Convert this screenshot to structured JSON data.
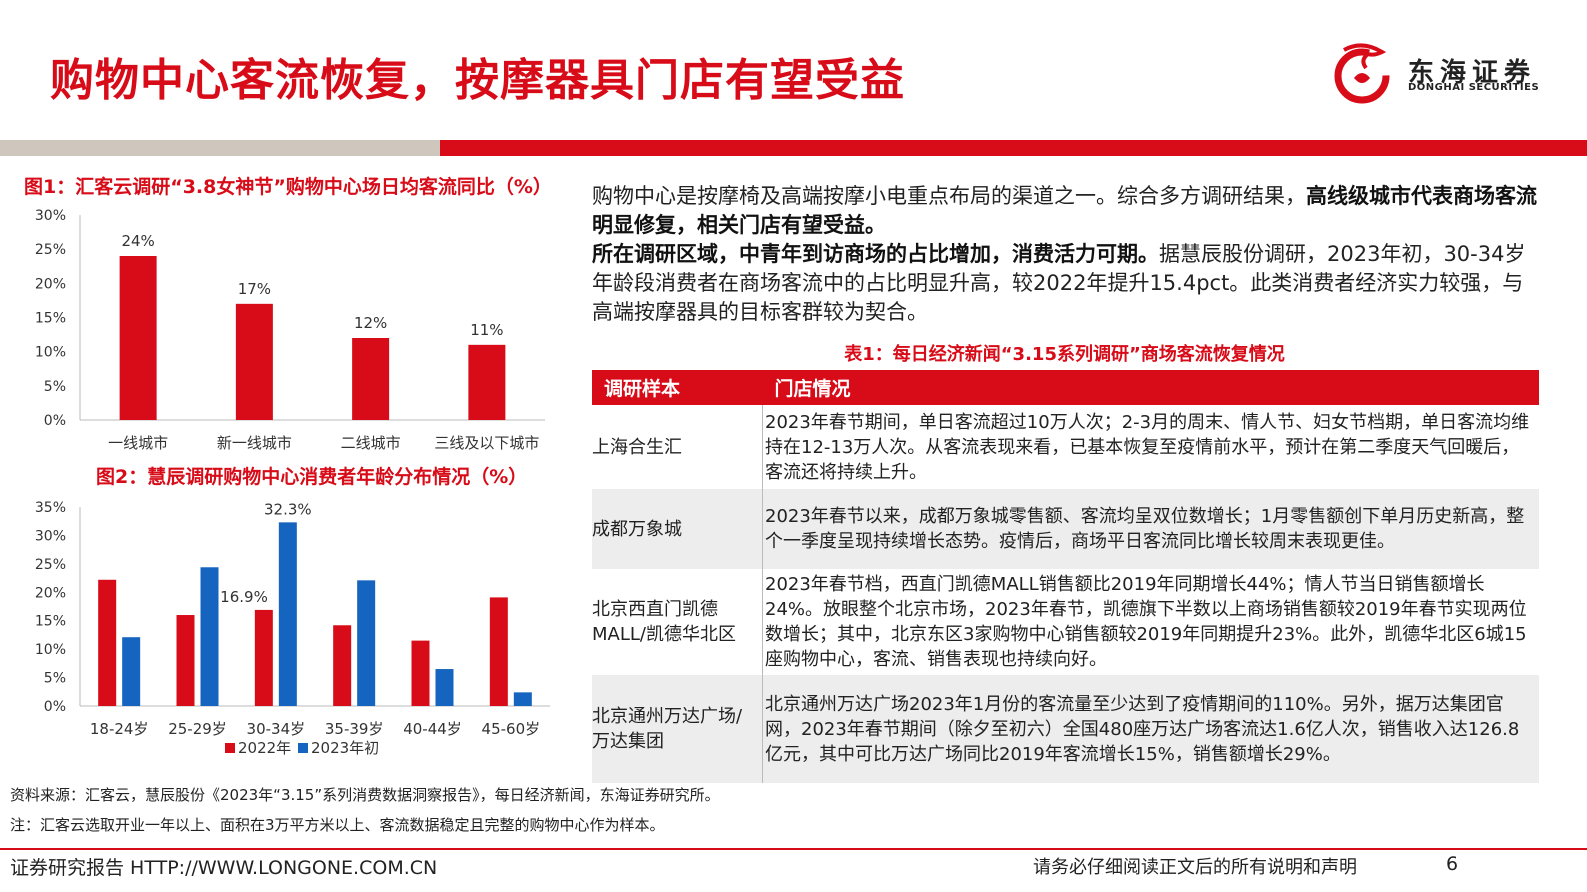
{
  "header": {
    "title": "购物中心客流恢复，按摩器具门店有望受益",
    "logo_cn": "东海证券",
    "logo_en": "DONGHAI SECURITIES"
  },
  "figure1": {
    "title": "图1：汇客云调研“3.8女神节”购物中心场日均客流同比（%）"
  },
  "figure2": {
    "title": "图2：慧辰调研购物中心消费者年龄分布情况（%）"
  },
  "chart_data": [
    {
      "type": "bar",
      "categories": [
        "一线城市",
        "新一线城市",
        "二线城市",
        "三线及以下城市"
      ],
      "values": [
        24,
        17,
        12,
        11
      ],
      "value_labels": [
        "24%",
        "17%",
        "12%",
        "11%"
      ],
      "yticks": [
        "0%",
        "5%",
        "10%",
        "15%",
        "20%",
        "25%",
        "30%"
      ],
      "ylim": [
        0,
        30
      ],
      "color": "#d80c18"
    },
    {
      "type": "bar",
      "categories": [
        "18-24岁",
        "25-29岁",
        "30-34岁",
        "35-39岁",
        "40-44岁",
        "45-60岁"
      ],
      "series": [
        {
          "name": "2022年",
          "color": "#d80c18",
          "values": [
            22.2,
            16.0,
            16.9,
            14.2,
            11.5,
            19.1
          ]
        },
        {
          "name": "2023年初",
          "color": "#1565c0",
          "values": [
            12.1,
            24.4,
            32.3,
            22.1,
            6.5,
            2.4
          ]
        }
      ],
      "value_labels": [
        {
          "series": 0,
          "index": 2,
          "text": "16.9%"
        },
        {
          "series": 1,
          "index": 2,
          "text": "32.3%"
        }
      ],
      "yticks": [
        "0%",
        "5%",
        "10%",
        "15%",
        "20%",
        "25%",
        "30%",
        "35%"
      ],
      "ylim": [
        0,
        35
      ],
      "legend": "bottom"
    }
  ],
  "paragraph": {
    "p1_normal": "购物中心是按摩椅及高端按摩小电重点布局的渠道之一。综合多方调研结果，",
    "p1_bold": "高线级城市代表商场客流明显修复，相关门店有望受益。",
    "p2_bold": "所在调研区域，中青年到访商场的占比增加，消费活力可期。",
    "p2_normal": "据慧辰股份调研，2023年初，30-34岁年龄段消费者在商场客流中的占比明显升高，较2022年提升15.4pct。此类消费者经济实力较强，与高端按摩器具的目标客群较为契合。"
  },
  "table": {
    "title": "表1：每日经济新闻“3.15系列调研”商场客流恢复情况",
    "headers": [
      "调研样本",
      "门店情况"
    ],
    "rows": [
      {
        "name": "上海合生汇",
        "desc": "2023年春节期间，单日客流超过10万人次；2-3月的周末、情人节、妇女节档期，单日客流均维持在12-13万人次。从客流表现来看，已基本恢复至疫情前水平，预计在第二季度天气回暖后，客流还将持续上升。"
      },
      {
        "name": "成都万象城",
        "desc": "2023年春节以来，成都万象城零售额、客流均呈双位数增长；1月零售额创下单月历史新高，整个一季度呈现持续增长态势。疫情后，商场平日客流同比增长较周末表现更佳。"
      },
      {
        "name": "北京西直门凯德MALL/凯德华北区",
        "desc": "2023年春节档，西直门凯德MALL销售额比2019年同期增长44%；情人节当日销售额增长24%。放眼整个北京市场，2023年春节，凯德旗下半数以上商场销售额较2019年春节实现两位数增长；其中，北京东区3家购物中心销售额较2019年同期提升23%。此外，凯德华北区6城15座购物中心，客流、销售表现也持续向好。"
      },
      {
        "name": "北京通州万达广场/万达集团",
        "desc": "北京通州万达广场2023年1月份的客流量至少达到了疫情期间的110%。另外，据万达集团官网，2023年春节期间（除夕至初六）全国480座万达广场客流达1.6亿人次，销售收入达126.8亿元，其中可比万达广场同比2019年客流增长15%，销售额增长29%。"
      }
    ]
  },
  "footer": {
    "source": "资料来源：汇客云，慧辰股份《2023年“3.15”系列消费数据洞察报告》，每日经济新闻，东海证券研究所。",
    "note": "注：汇客云选取开业一年以上、面积在3万平方米以上、客流数据稳定且完整的购物中心作为样本。",
    "left": "证券研究报告 HTTP://WWW.LONGONE.COM.CN",
    "right": "请务必仔细阅读正文后的所有说明和声明",
    "page": "6"
  }
}
